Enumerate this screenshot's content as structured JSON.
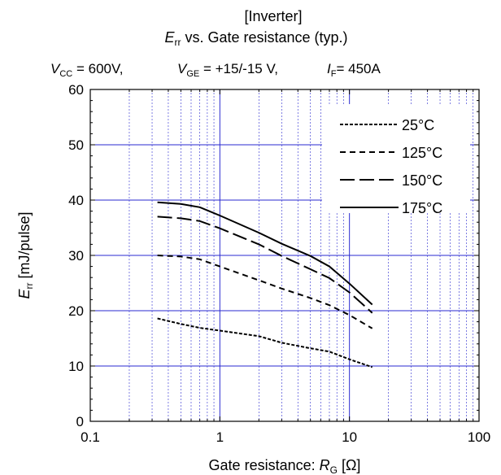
{
  "chart_data": {
    "type": "line",
    "title_line1": "[Inverter]",
    "title_line2": {
      "sym": "E",
      "sub": "rr",
      "rest": " vs. Gate resistance  (typ.)"
    },
    "conditions": [
      {
        "sym": "V",
        "sub": "CC",
        "rest": " = 600V,"
      },
      {
        "sym": "V",
        "sub": "GE",
        "rest": " = +15/-15 V,"
      },
      {
        "sym": "I",
        "sub": "F",
        "rest": "= 450A"
      }
    ],
    "xlabel": {
      "pre": "Gate resistance: ",
      "sym": "R",
      "sub": "G",
      "post": " [Ω]"
    },
    "ylabel": {
      "sym": "E",
      "sub": "rr",
      "post": " [mJ/pulse]"
    },
    "x_scale": "log",
    "xlim": [
      0.1,
      100
    ],
    "ylim": [
      0,
      60
    ],
    "x_ticks": [
      0.1,
      1,
      10,
      100
    ],
    "x_tick_labels": [
      "0.1",
      "1",
      "10",
      "100"
    ],
    "y_ticks": [
      0,
      10,
      20,
      30,
      40,
      50,
      60
    ],
    "y_tick_labels": [
      "0",
      "10",
      "20",
      "30",
      "40",
      "50",
      "60"
    ],
    "grid": true,
    "grid_color": "#2a2ad0",
    "legend_position": "top-right",
    "series": [
      {
        "name": "25°C",
        "dash": "dotted",
        "x": [
          0.33,
          0.5,
          0.7,
          1,
          2,
          3,
          5,
          7,
          10,
          15
        ],
        "y": [
          18.6,
          17.6,
          16.9,
          16.4,
          15.4,
          14.2,
          13.2,
          12.6,
          11.2,
          9.8
        ]
      },
      {
        "name": "125°C",
        "dash": "short-dash",
        "x": [
          0.33,
          0.5,
          0.7,
          1,
          2,
          3,
          5,
          7,
          10,
          15
        ],
        "y": [
          30,
          29.8,
          29.3,
          28.0,
          25.5,
          24.0,
          22.3,
          21.0,
          19.2,
          16.8
        ]
      },
      {
        "name": "150°C",
        "dash": "long-dash",
        "x": [
          0.33,
          0.5,
          0.7,
          1,
          2,
          3,
          5,
          7,
          10,
          15
        ],
        "y": [
          37,
          36.7,
          36.2,
          34.9,
          32.0,
          29.9,
          27.5,
          25.9,
          23.3,
          19.6
        ]
      },
      {
        "name": "175°C",
        "dash": "solid",
        "x": [
          0.33,
          0.5,
          0.7,
          1,
          2,
          3,
          5,
          7,
          10,
          15
        ],
        "y": [
          39.6,
          39.3,
          38.7,
          37.2,
          34.1,
          32.1,
          29.9,
          28.0,
          24.9,
          21.1
        ]
      }
    ]
  }
}
